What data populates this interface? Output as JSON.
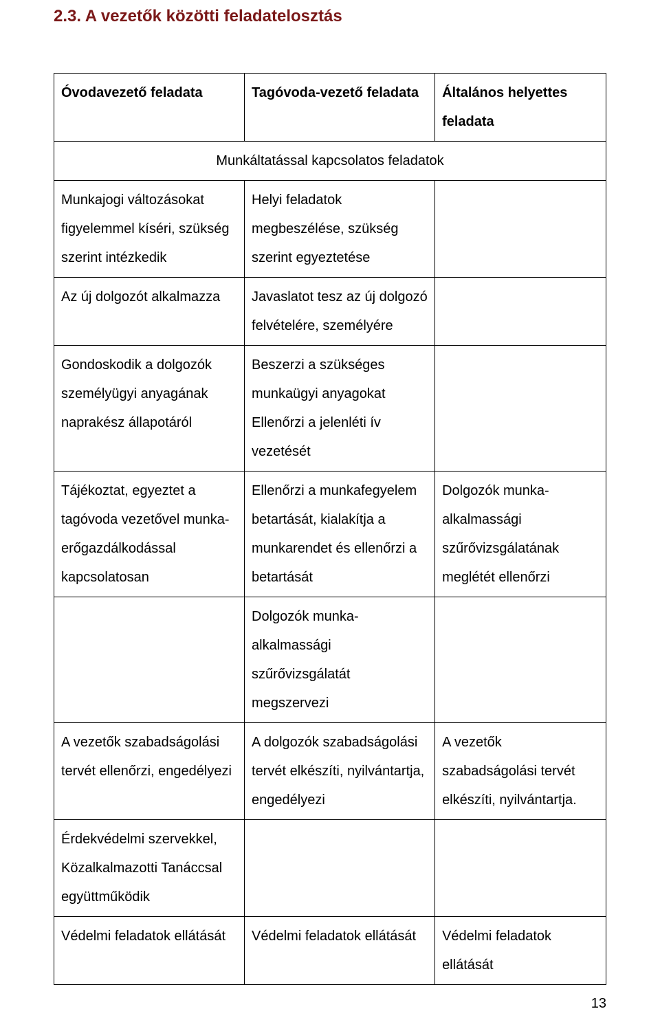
{
  "title": "2.3. A vezetők közötti feladatelosztás",
  "headers": {
    "col1": "Óvodavezető feladata",
    "col2": "Tagóvoda-vezető feladata",
    "col3": "Általános helyettes feladata"
  },
  "subheader": "Munkáltatással kapcsolatos feladatok",
  "rows": [
    {
      "c1": "Munkajogi változásokat figyelemmel kíséri, szükség szerint intézkedik",
      "c2": "Helyi feladatok megbeszélése, szükség szerint egyeztetése",
      "c3": ""
    },
    {
      "c1": "Az új dolgozót alkalmazza",
      "c2": "Javaslatot tesz az új dolgozó felvételére, személyére",
      "c3": ""
    },
    {
      "c1": "Gondoskodik a dolgozók személyügyi anyagának naprakész állapotáról",
      "c2": "Beszerzi a szükséges munkaügyi anyagokat Ellenőrzi a jelenléti ív vezetését",
      "c3": ""
    },
    {
      "c1": "Tájékoztat, egyeztet a tagóvoda vezetővel munka-erőgazdálkodással kapcsolatosan",
      "c2": "Ellenőrzi a munkafegyelem betartását, kialakítja a munkarendet és ellenőrzi a betartását",
      "c3": "Dolgozók munka-alkalmassági szűrővizsgálatának meglétét ellenőrzi"
    },
    {
      "c1": "",
      "c2": "Dolgozók munka-alkalmassági szűrővizsgálatát megszervezi",
      "c3": ""
    },
    {
      "c1": "A vezetők szabadságolási tervét ellenőrzi, engedélyezi",
      "c2": "A dolgozók szabadságolási tervét elkészíti, nyilvántartja, engedélyezi",
      "c3": "A vezetők szabadságolási tervét elkészíti, nyilvántartja."
    },
    {
      "c1": "Érdekvédelmi szervekkel, Közalkalmazotti Tanáccsal együttműködik",
      "c2": "",
      "c3": ""
    },
    {
      "c1": "Védelmi feladatok ellátását",
      "c2": "Védelmi feladatok ellátását",
      "c3": "Védelmi feladatok ellátását"
    }
  ],
  "pageNumber": "13"
}
